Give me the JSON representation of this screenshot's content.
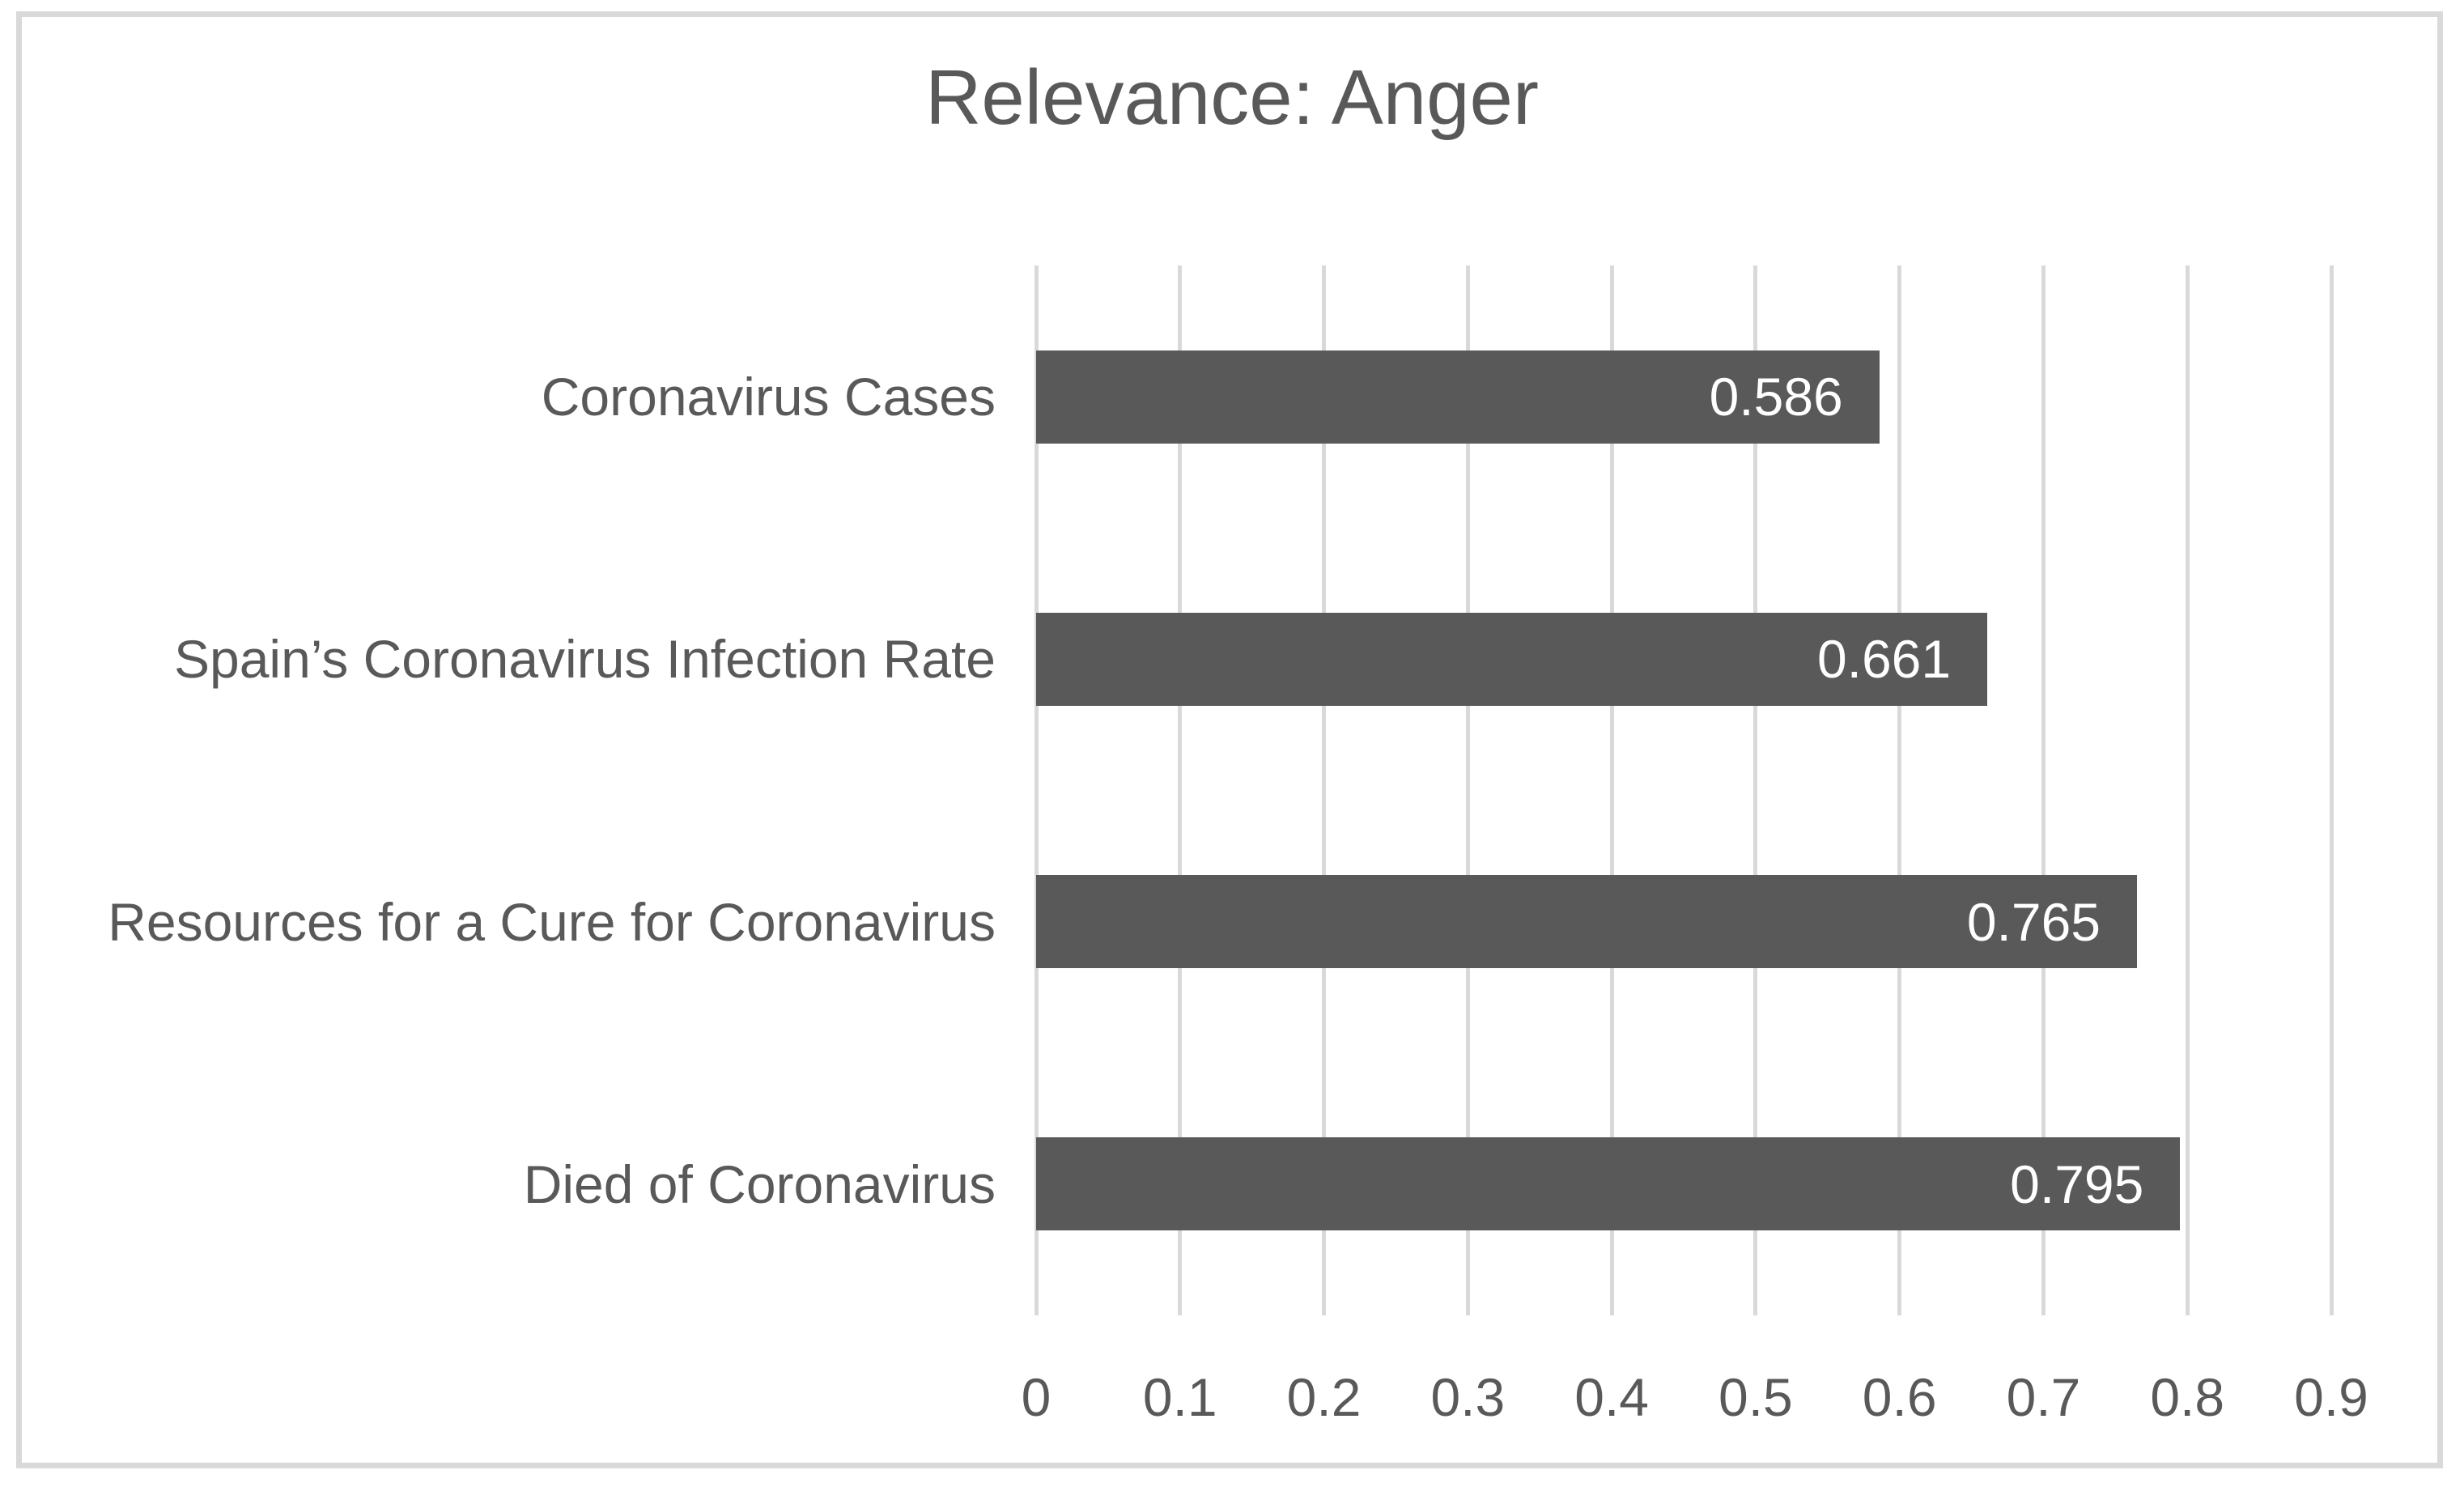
{
  "chart_data": {
    "type": "bar",
    "orientation": "horizontal",
    "title": "Relevance: Anger",
    "categories": [
      "Coronavirus Cases",
      "Spain’s Coronavirus Infection Rate",
      "Resources for a Cure for Coronavirus",
      "Died of Coronavirus"
    ],
    "values": [
      0.586,
      0.661,
      0.765,
      0.795
    ],
    "value_labels": [
      "0.586",
      "0.661",
      "0.765",
      "0.795"
    ],
    "xlabel": "",
    "ylabel": "",
    "xlim": [
      0,
      0.9
    ],
    "x_ticks": [
      "0",
      "0.1",
      "0.2",
      "0.3",
      "0.4",
      "0.5",
      "0.6",
      "0.7",
      "0.8",
      "0.9"
    ],
    "x_tick_values": [
      0,
      0.1,
      0.2,
      0.3,
      0.4,
      0.5,
      0.6,
      0.7,
      0.8,
      0.9
    ],
    "grid": "vertical-only",
    "legend": "none",
    "colors": {
      "bar_fill": "#595959",
      "gridline": "#D9D9D9",
      "frame_border": "#D9D9D9",
      "title_text": "#595959",
      "axis_text": "#595959",
      "category_text": "#595959",
      "value_label_text": "#FFFFFF",
      "background": "#FFFFFF"
    }
  }
}
